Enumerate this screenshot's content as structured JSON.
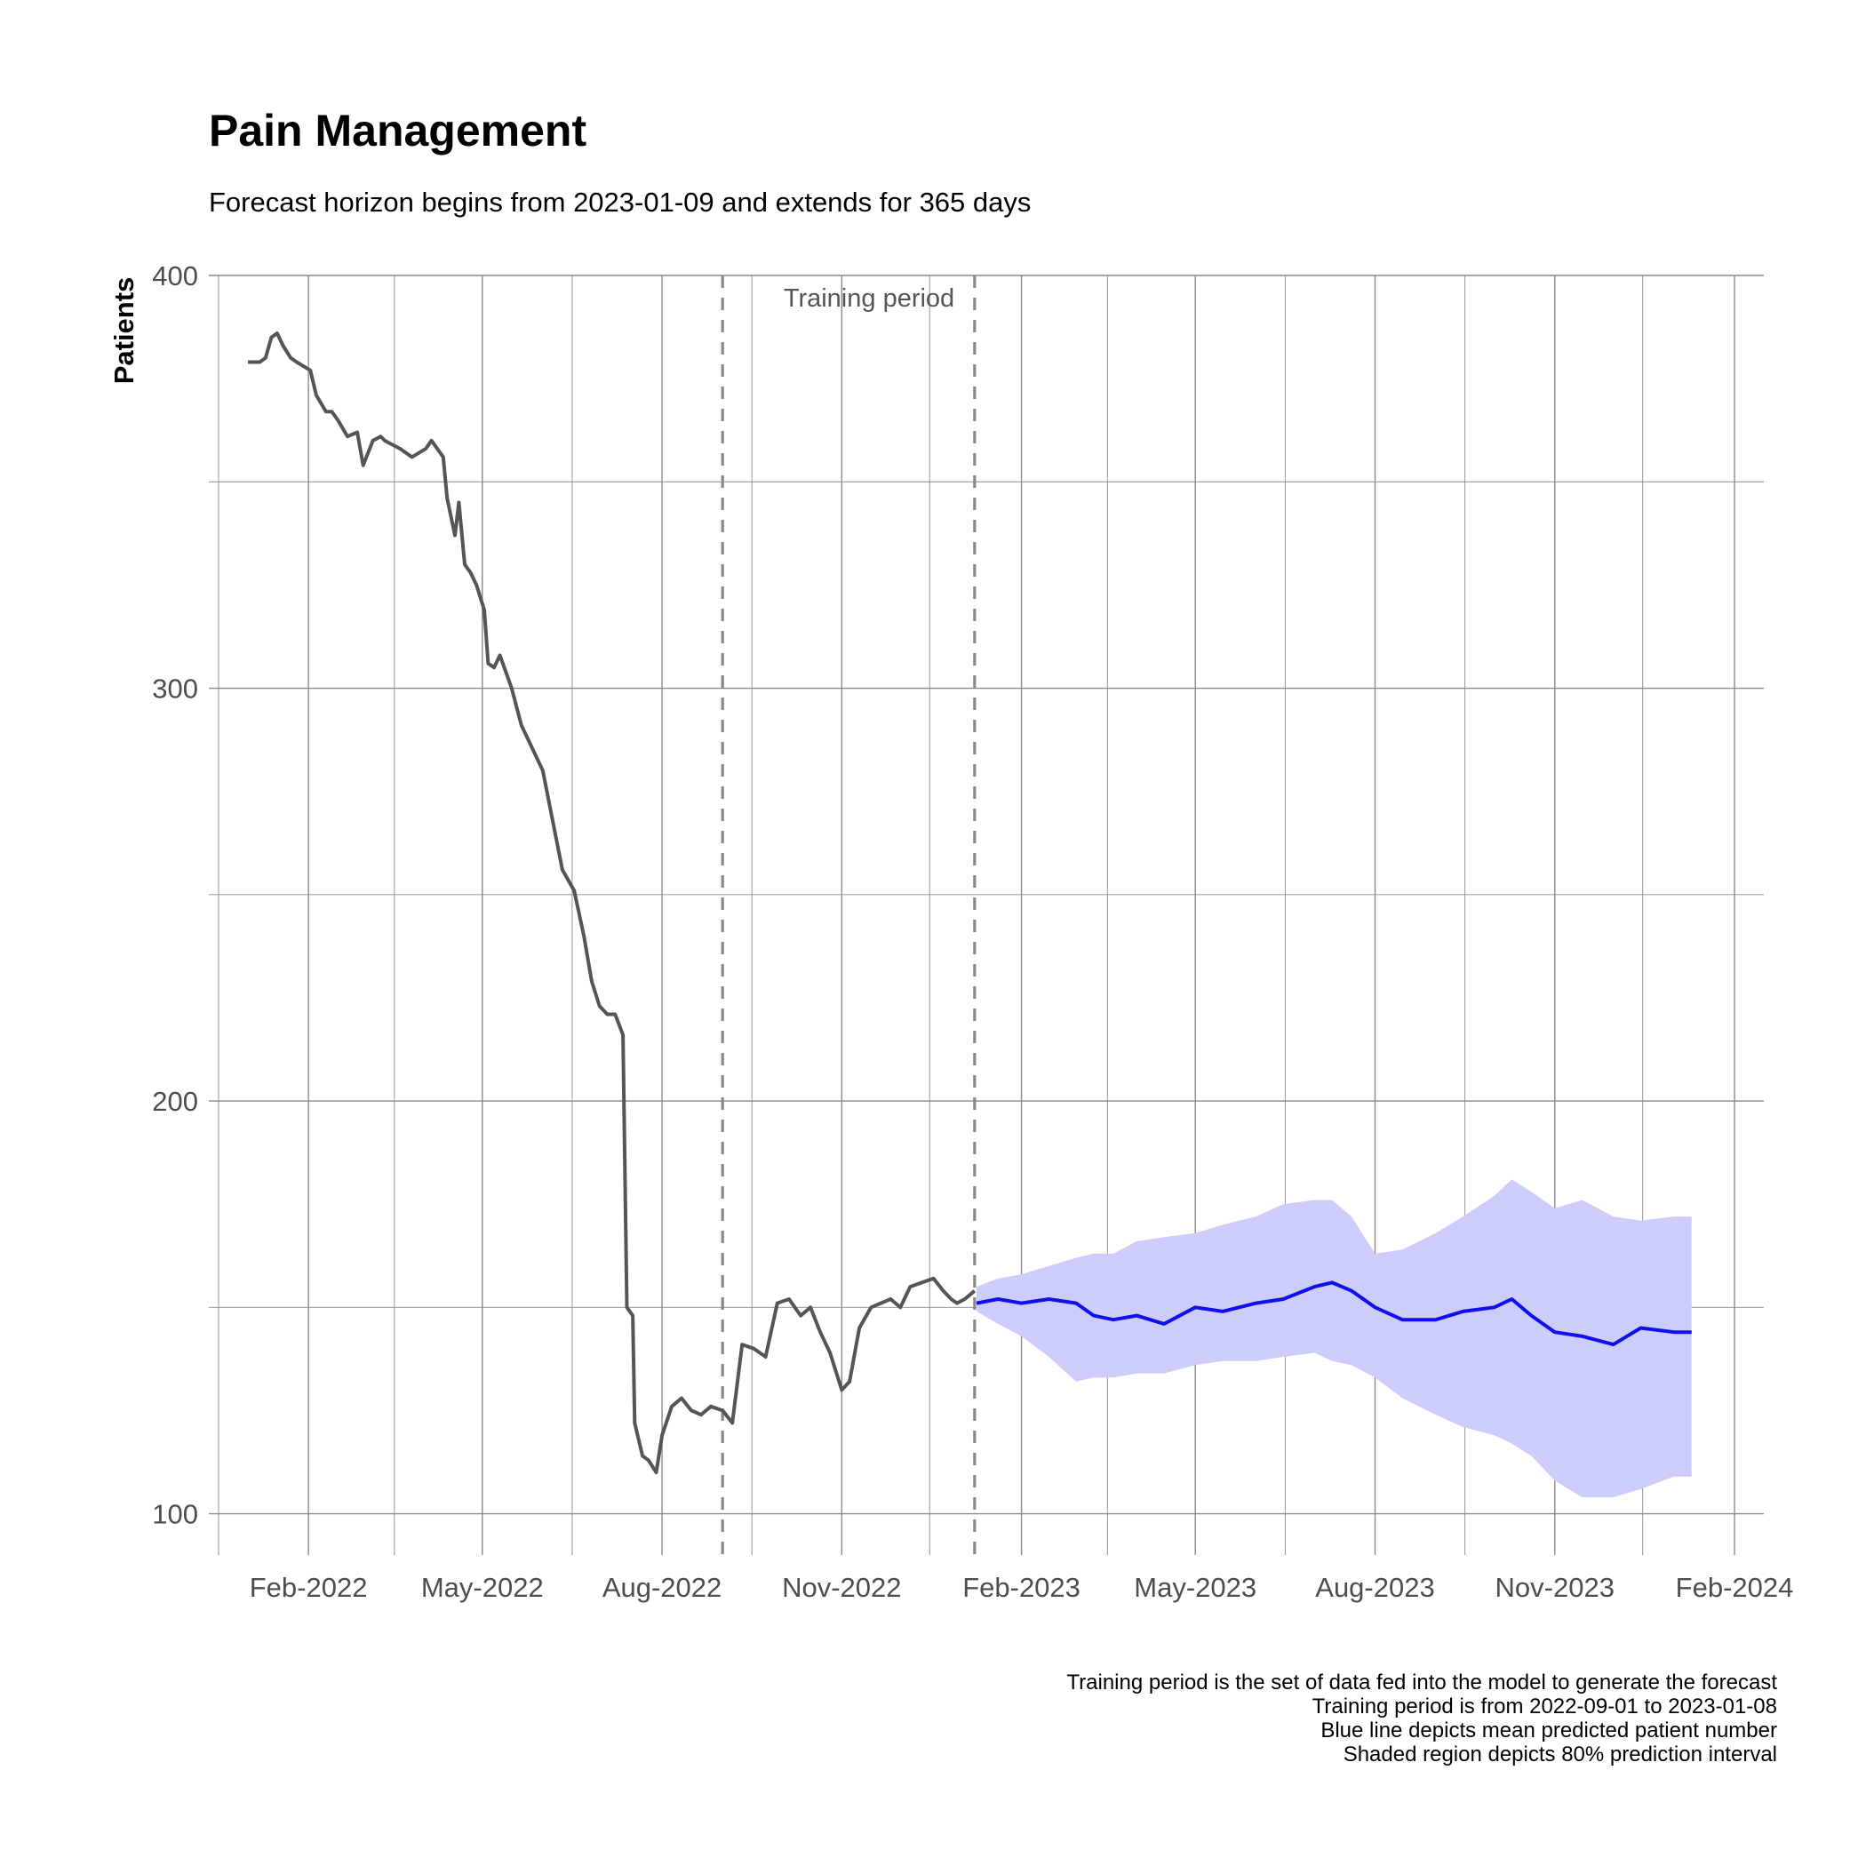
{
  "chart_data": {
    "type": "line",
    "title": "Pain Management",
    "subtitle": "Forecast horizon begins from 2023-01-09 and extends for 365 days",
    "ylabel": "Patients",
    "xlabel": "",
    "ylim": [
      90,
      400
    ],
    "xlim": [
      "2021-12-12",
      "2024-02-16"
    ],
    "y_ticks": [
      100,
      200,
      300,
      400
    ],
    "x_ticks": [
      {
        "date": "2022-02-01",
        "label": "Feb-2022"
      },
      {
        "date": "2022-05-01",
        "label": "May-2022"
      },
      {
        "date": "2022-08-01",
        "label": "Aug-2022"
      },
      {
        "date": "2022-11-01",
        "label": "Nov-2022"
      },
      {
        "date": "2023-02-01",
        "label": "Feb-2023"
      },
      {
        "date": "2023-05-01",
        "label": "May-2023"
      },
      {
        "date": "2023-08-01",
        "label": "Aug-2023"
      },
      {
        "date": "2023-11-01",
        "label": "Nov-2023"
      },
      {
        "date": "2024-02-01",
        "label": "Feb-2024"
      }
    ],
    "x_minor_ticks": [
      "2021-12-17",
      "2022-03-17",
      "2022-06-16",
      "2022-09-16",
      "2022-12-16",
      "2023-03-17",
      "2023-06-16",
      "2023-09-16",
      "2023-12-16"
    ],
    "grid": true,
    "training_period": {
      "start": "2022-09-01",
      "end": "2023-01-08",
      "label": "Training period"
    },
    "colors": {
      "actual": "#555555",
      "forecast": "#1010ee",
      "interval": "#cccdfb",
      "vline": "#888888",
      "grid": "#8a8a8a"
    },
    "series": [
      {
        "name": "",
        "role": "actual",
        "x": [
          "2022-01-01",
          "2022-01-07",
          "2022-01-10",
          "2022-01-13",
          "2022-01-16",
          "2022-01-19",
          "2022-01-23",
          "2022-01-26",
          "2022-02-02",
          "2022-02-05",
          "2022-02-10",
          "2022-02-13",
          "2022-02-16",
          "2022-02-21",
          "2022-02-26",
          "2022-03-01",
          "2022-03-06",
          "2022-03-10",
          "2022-03-12",
          "2022-03-16",
          "2022-03-20",
          "2022-03-26",
          "2022-04-02",
          "2022-04-05",
          "2022-04-08",
          "2022-04-11",
          "2022-04-13",
          "2022-04-17",
          "2022-04-19",
          "2022-04-22",
          "2022-04-25",
          "2022-04-28",
          "2022-05-02",
          "2022-05-04",
          "2022-05-07",
          "2022-05-10",
          "2022-05-16",
          "2022-05-21",
          "2022-05-26",
          "2022-06-01",
          "2022-06-06",
          "2022-06-11",
          "2022-06-17",
          "2022-06-22",
          "2022-06-26",
          "2022-06-30",
          "2022-07-04",
          "2022-07-08",
          "2022-07-12",
          "2022-07-14",
          "2022-07-17",
          "2022-07-18",
          "2022-07-22",
          "2022-07-25",
          "2022-07-29",
          "2022-08-01",
          "2022-08-06",
          "2022-08-11",
          "2022-08-16",
          "2022-08-21",
          "2022-08-26",
          "2022-09-01",
          "2022-09-06",
          "2022-09-11",
          "2022-09-17",
          "2022-09-23",
          "2022-09-29",
          "2022-10-05",
          "2022-10-11",
          "2022-10-16",
          "2022-10-21",
          "2022-10-26",
          "2022-11-01",
          "2022-11-05",
          "2022-11-10",
          "2022-11-16",
          "2022-11-21",
          "2022-11-26",
          "2022-12-01",
          "2022-12-06",
          "2022-12-12",
          "2022-12-18",
          "2022-12-23",
          "2022-12-27",
          "2022-12-30",
          "2023-01-03",
          "2023-01-08"
        ],
        "y": [
          379,
          379,
          380,
          385,
          386,
          383,
          380,
          379,
          377,
          371,
          367,
          367,
          365,
          361,
          362,
          354,
          360,
          361,
          360,
          359,
          358,
          356,
          358,
          360,
          358,
          356,
          346,
          337,
          345,
          330,
          328,
          325,
          319,
          306,
          305,
          308,
          300,
          291,
          286,
          280,
          268,
          256,
          251,
          240,
          229,
          223,
          221,
          221,
          216,
          150,
          148,
          122,
          114,
          113,
          110,
          119,
          126,
          128,
          125,
          124,
          126,
          125,
          122,
          141,
          140,
          138,
          151,
          152,
          148,
          150,
          144,
          139,
          130,
          132,
          145,
          150,
          151,
          152,
          150,
          155,
          156,
          157,
          154,
          152,
          151,
          152,
          154
        ]
      },
      {
        "name": "",
        "role": "forecast_mean",
        "x": [
          "2023-01-09",
          "2023-01-20",
          "2023-02-01",
          "2023-02-15",
          "2023-03-01",
          "2023-03-10",
          "2023-03-20",
          "2023-04-01",
          "2023-04-15",
          "2023-05-01",
          "2023-05-15",
          "2023-06-01",
          "2023-06-15",
          "2023-07-01",
          "2023-07-10",
          "2023-07-20",
          "2023-08-01",
          "2023-08-15",
          "2023-09-01",
          "2023-09-15",
          "2023-10-01",
          "2023-10-10",
          "2023-10-20",
          "2023-11-01",
          "2023-11-15",
          "2023-12-01",
          "2023-12-15",
          "2024-01-01",
          "2024-01-10"
        ],
        "y": [
          151,
          152,
          151,
          152,
          151,
          148,
          147,
          148,
          146,
          150,
          149,
          151,
          152,
          155,
          156,
          154,
          150,
          147,
          147,
          149,
          150,
          152,
          148,
          144,
          143,
          141,
          145,
          144,
          144
        ]
      }
    ],
    "prediction_interval": {
      "name": "",
      "level": 0.8,
      "x": [
        "2023-01-09",
        "2023-01-20",
        "2023-02-01",
        "2023-02-15",
        "2023-03-01",
        "2023-03-10",
        "2023-03-20",
        "2023-04-01",
        "2023-04-15",
        "2023-05-01",
        "2023-05-15",
        "2023-06-01",
        "2023-06-15",
        "2023-07-01",
        "2023-07-10",
        "2023-07-20",
        "2023-08-01",
        "2023-08-15",
        "2023-09-01",
        "2023-09-15",
        "2023-10-01",
        "2023-10-10",
        "2023-10-20",
        "2023-11-01",
        "2023-11-15",
        "2023-12-01",
        "2023-12-15",
        "2024-01-01",
        "2024-01-10"
      ],
      "lower": [
        149,
        146,
        143,
        138,
        132,
        133,
        133,
        134,
        134,
        136,
        137,
        137,
        138,
        139,
        137,
        136,
        133,
        128,
        124,
        121,
        119,
        117,
        114,
        108,
        104,
        104,
        106,
        109,
        109
      ],
      "upper": [
        155,
        157,
        158,
        160,
        162,
        163,
        163,
        166,
        167,
        168,
        170,
        172,
        175,
        176,
        176,
        172,
        163,
        164,
        168,
        172,
        177,
        181,
        178,
        174,
        176,
        172,
        171,
        172,
        172
      ]
    }
  },
  "caption": [
    "Training period is the set of data fed into the model to generate the forecast",
    "Training period is from 2022-09-01 to 2023-01-08",
    "Blue line depicts mean predicted patient number",
    "Shaded region depicts 80% prediction interval"
  ]
}
